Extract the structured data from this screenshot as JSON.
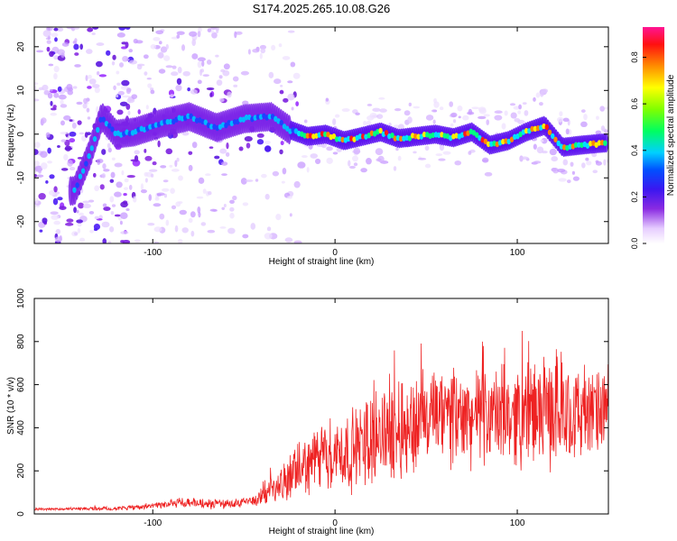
{
  "title": "S174.2025.265.10.08.G26",
  "chart_data": [
    {
      "type": "heatmap",
      "id": "spectrogram",
      "xlabel": "Height of straight line (km)",
      "ylabel": "Frequency (Hz)",
      "xlim": [
        -165,
        150
      ],
      "ylim": [
        -25,
        24.5
      ],
      "xticks": [
        -100,
        0,
        100
      ],
      "yticks": [
        -20,
        -10,
        0,
        10,
        20
      ],
      "colorbar": {
        "label": "Normalized spectral amplitude",
        "range": [
          0,
          0.93
        ],
        "ticks": [
          0.0,
          0.2,
          0.4,
          0.6,
          0.8
        ],
        "tick_labels": [
          "0.0",
          "0.2",
          "0.4",
          "0.6",
          "0.8"
        ]
      },
      "ridge": {
        "x": [
          -143,
          -135,
          -128,
          -120,
          -110,
          -95,
          -80,
          -65,
          -50,
          -35,
          -25,
          -15,
          -5,
          5,
          15,
          25,
          35,
          45,
          55,
          65,
          75,
          85,
          95,
          105,
          115,
          125,
          135,
          148
        ],
        "freq": [
          -13,
          -5,
          4,
          0,
          0.5,
          2.5,
          4,
          1.5,
          3.5,
          4,
          1,
          -0.5,
          0,
          -1.5,
          -0.5,
          0.5,
          -1,
          -0.5,
          0,
          -0.8,
          0.5,
          -2.5,
          -1.5,
          0.5,
          2,
          -3,
          -2.5,
          -2
        ]
      }
    },
    {
      "type": "line",
      "id": "snr",
      "xlabel": "Height of straight line (km)",
      "ylabel": "SNR (10 * v/v)",
      "xlim": [
        -165,
        150
      ],
      "ylim": [
        0,
        1000
      ],
      "xticks": [
        -100,
        0,
        100
      ],
      "yticks": [
        0,
        200,
        400,
        600,
        800,
        1000
      ],
      "color": "#ee2222",
      "envelope": {
        "x": [
          -165,
          -140,
          -120,
          -100,
          -85,
          -70,
          -50,
          -40,
          -30,
          -20,
          -10,
          0,
          10,
          20,
          30,
          40,
          50,
          60,
          70,
          80,
          90,
          100,
          110,
          120,
          130,
          140,
          150
        ],
        "mean": [
          22,
          24,
          26,
          35,
          55,
          45,
          50,
          80,
          130,
          200,
          260,
          280,
          290,
          360,
          390,
          400,
          440,
          450,
          440,
          460,
          450,
          460,
          470,
          480,
          470,
          460,
          480
        ],
        "amp": [
          6,
          8,
          10,
          15,
          30,
          25,
          30,
          50,
          90,
          140,
          180,
          200,
          220,
          260,
          270,
          280,
          260,
          270,
          260,
          250,
          260,
          270,
          280,
          300,
          260,
          240,
          230
        ]
      }
    }
  ]
}
